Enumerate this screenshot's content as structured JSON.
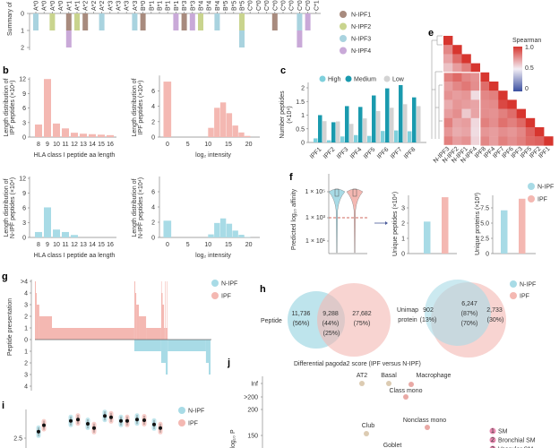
{
  "panel_labels": {
    "b": "b",
    "c": "c",
    "e": "e",
    "f": "f",
    "g": "g",
    "h": "h",
    "i": "i",
    "j": "j"
  },
  "colors": {
    "N-IPF1": "#a88b7e",
    "N-IPF2": "#c9d48e",
    "N-IPF3": "#a9d3df",
    "N-IPF4": "#c9a9d8",
    "ipf": "#f4b8b2",
    "n_ipf": "#a8dbe6",
    "high": "#7fd0dc",
    "medium": "#1a9aae",
    "low": "#d3d3d3",
    "red_text": "#e0483e",
    "threshold": "#c0392b",
    "heat_high": "#d7362f",
    "heat_mid": "#f3eef5",
    "heat_low": "#3a4fa0",
    "myeloid": "#e9a9a5",
    "epithelial": "#dccbb2",
    "sm_badge": "#e889b0"
  },
  "chart_data": [
    {
      "type": "bar",
      "panel": "a",
      "ylabel": "Summary of",
      "yticks": [
        "0",
        "1",
        "2"
      ],
      "ylim": [
        0,
        2
      ],
      "categories": [
        "A*0",
        "A*0",
        "A*0",
        "A*0",
        "A*1",
        "A*1",
        "A*2",
        "A*2",
        "A*2",
        "A*3",
        "A*3",
        "A*3",
        "A*3",
        "B*0",
        "B*1",
        "B*1",
        "B*1",
        "B*1",
        "B*3",
        "B*3",
        "B*4",
        "B*4",
        "B*4",
        "B*5",
        "B*5",
        "B*5",
        "C*0",
        "C*0",
        "C*0",
        "C*0",
        "C*0",
        "C*0",
        "C*0",
        "C*0",
        "C*1"
      ],
      "legend": [
        "N-IPF1",
        "N-IPF2",
        "N-IPF3",
        "N-IPF4"
      ],
      "stacks": [
        {
          "col": 0,
          "segments": [
            {
              "group": "N-IPF3",
              "value": 1
            }
          ]
        },
        {
          "col": 2,
          "segments": [
            {
              "group": "N-IPF2",
              "value": 1
            }
          ]
        },
        {
          "col": 4,
          "segments": [
            {
              "group": "N-IPF1",
              "value": 1
            },
            {
              "group": "N-IPF4",
              "value": 1
            }
          ]
        },
        {
          "col": 5,
          "segments": [
            {
              "group": "N-IPF2",
              "value": 1
            }
          ]
        },
        {
          "col": 6,
          "segments": [
            {
              "group": "N-IPF1",
              "value": 1
            }
          ]
        },
        {
          "col": 8,
          "segments": [
            {
              "group": "N-IPF3",
              "value": 1
            }
          ]
        },
        {
          "col": 12,
          "segments": [
            {
              "group": "N-IPF3",
              "value": 1
            }
          ]
        },
        {
          "col": 13,
          "segments": [
            {
              "group": "N-IPF1",
              "value": 1
            }
          ]
        },
        {
          "col": 17,
          "segments": [
            {
              "group": "N-IPF4",
              "value": 1
            }
          ]
        },
        {
          "col": 18,
          "segments": [
            {
              "group": "N-IPF1",
              "value": 1
            }
          ]
        },
        {
          "col": 19,
          "segments": [
            {
              "group": "N-IPF4",
              "value": 1
            }
          ]
        },
        {
          "col": 20,
          "segments": [
            {
              "group": "N-IPF2",
              "value": 1
            }
          ]
        },
        {
          "col": 22,
          "segments": [
            {
              "group": "N-IPF3",
              "value": 1
            }
          ]
        },
        {
          "col": 25,
          "segments": [
            {
              "group": "N-IPF2",
              "value": 1
            },
            {
              "group": "N-IPF3",
              "value": 1
            }
          ]
        },
        {
          "col": 29,
          "segments": [
            {
              "group": "N-IPF1",
              "value": 1
            }
          ]
        },
        {
          "col": 32,
          "segments": [
            {
              "group": "N-IPF3",
              "value": 1
            },
            {
              "group": "N-IPF4",
              "value": 1
            }
          ]
        },
        {
          "col": 33,
          "segments": [
            {
              "group": "N-IPF4",
              "value": 1
            }
          ]
        }
      ]
    },
    {
      "type": "bar",
      "panel": "b",
      "ylabel": [
        "Length distribution of",
        "IPF peptides (×10⁴)"
      ],
      "xlabel": "HLA class I peptide aa length",
      "categories": [
        "8",
        "9",
        "10",
        "11",
        "12",
        "13",
        "14",
        "15",
        "16"
      ],
      "values": [
        2.6,
        12,
        2.8,
        1.8,
        0.9,
        0.7,
        0.6,
        0.5,
        0.4
      ],
      "yticks": [
        "0",
        "3",
        "6",
        "9",
        "12"
      ],
      "ylim": [
        0,
        12
      ]
    },
    {
      "type": "bar",
      "panel": "b",
      "ylabel": [
        "Length distribution of",
        "IPF peptides (×10⁴)"
      ],
      "xlabel": "log₂ intensity",
      "bins": [
        [
          -1,
          1,
          7.2
        ],
        [
          10,
          11.5,
          1.2
        ],
        [
          11.5,
          13,
          3.8
        ],
        [
          13,
          14.5,
          4.5
        ],
        [
          14.5,
          16,
          3.1
        ],
        [
          16,
          17.5,
          1.5
        ],
        [
          17.5,
          19,
          0.6
        ],
        [
          19,
          20.5,
          0.15
        ]
      ],
      "xticks": [
        "0",
        "5",
        "10",
        "15",
        "20"
      ],
      "yticks": [
        "0",
        "2",
        "4",
        "6"
      ],
      "ylim": [
        0,
        8
      ]
    },
    {
      "type": "bar",
      "panel": "b",
      "ylabel": [
        "Length distribution of",
        "N-IPF peptides (×10⁴)"
      ],
      "xlabel": "HLA class I peptide aa length",
      "categories": [
        "8",
        "9",
        "10",
        "11",
        "12",
        "13",
        "14",
        "15",
        "16"
      ],
      "values": [
        1.1,
        6.1,
        1.6,
        1.1,
        0.5,
        0,
        0,
        0,
        0
      ],
      "yticks": [
        "0",
        "3",
        "6",
        "9",
        "12"
      ],
      "ylim": [
        0,
        12
      ]
    },
    {
      "type": "bar",
      "panel": "b",
      "ylabel": [
        "Length distribution of",
        "N-IPF peptides (×10⁴)"
      ],
      "xlabel": "log₂ intensity",
      "bins": [
        [
          -1,
          1,
          2.2
        ],
        [
          10,
          11.5,
          0.4
        ],
        [
          11.5,
          13,
          1.9
        ],
        [
          13,
          14.5,
          2.5
        ],
        [
          14.5,
          16,
          1.8
        ],
        [
          16,
          17.5,
          0.9
        ],
        [
          17.5,
          19,
          0.35
        ],
        [
          19,
          20.5,
          0.05
        ]
      ],
      "xticks": [
        "0",
        "5",
        "10",
        "15",
        "20"
      ],
      "yticks": [
        "0",
        "2",
        "4",
        "6"
      ],
      "ylim": [
        0,
        8
      ]
    },
    {
      "type": "bar",
      "panel": "c",
      "ylabel": [
        "Number peptides",
        "(×10⁴)"
      ],
      "categories": [
        "IPF1",
        "IPF2",
        "IPF3",
        "IPF4",
        "IPF5",
        "IPF6",
        "IPF7",
        "IPF8"
      ],
      "series": [
        {
          "name": "High",
          "values": [
            0.15,
            0.08,
            0.22,
            0.27,
            0.24,
            0.42,
            0.44,
            0.41
          ]
        },
        {
          "name": "Medium",
          "values": [
            1.0,
            0.74,
            1.33,
            1.3,
            1.72,
            1.98,
            2.1,
            1.65
          ]
        },
        {
          "name": "Low",
          "values": [
            0.78,
            0.77,
            0.68,
            0.88,
            1.15,
            1.27,
            1.4,
            1.33
          ]
        }
      ],
      "yticks": [
        "0",
        "0.5",
        "1",
        "1.5",
        "2"
      ],
      "ylim": [
        0,
        2.2
      ]
    },
    {
      "type": "heatmap",
      "panel": "e",
      "legend_title": "Spearman",
      "colorbar_ticks": [
        "1.0",
        "0.5",
        "0"
      ],
      "labels": [
        "N-IPF3",
        "N-IPF2",
        "N-IPF1",
        "N-IPF4",
        "IPF8",
        "IPF4",
        "IPF7",
        "IPF6",
        "IPF3",
        "IPF5",
        "IPF2",
        "IPF1"
      ],
      "matrix": [
        [
          1
        ],
        [
          0.78,
          1
        ],
        [
          0.7,
          0.85,
          1
        ],
        [
          0.62,
          0.72,
          0.8,
          1
        ],
        [
          0.8,
          0.86,
          0.78,
          0.75,
          1
        ],
        [
          0.72,
          0.78,
          0.82,
          0.76,
          0.85,
          1
        ],
        [
          0.75,
          0.72,
          0.74,
          0.55,
          0.78,
          0.8,
          1
        ],
        [
          0.68,
          0.74,
          0.72,
          0.7,
          0.76,
          0.77,
          0.95,
          1
        ],
        [
          0.72,
          0.76,
          0.6,
          0.7,
          0.76,
          0.75,
          0.8,
          0.85,
          1
        ],
        [
          0.8,
          0.7,
          0.72,
          0.56,
          0.8,
          0.76,
          0.84,
          0.8,
          0.86,
          1
        ],
        [
          0.74,
          0.68,
          0.7,
          0.55,
          0.74,
          0.72,
          0.76,
          0.74,
          0.78,
          0.88,
          1
        ],
        [
          0.8,
          0.72,
          0.75,
          0.57,
          0.78,
          0.72,
          0.8,
          0.76,
          0.8,
          0.86,
          0.88,
          1
        ]
      ]
    },
    {
      "type": "violin",
      "panel": "f",
      "ylabel": "Predicted log₁₀ affinity",
      "yscale": "log",
      "yticks": [
        "1 × 10⁵",
        "1 × 10³",
        "1 × 10¹"
      ],
      "threshold_tick": "1 × 10³",
      "groups": [
        "N-IPF",
        "IPF"
      ]
    },
    {
      "type": "bar",
      "panel": "f",
      "ylabel": "Unique peptides (×10⁴)",
      "categories": [
        "N-IPF",
        "IPF"
      ],
      "values": [
        2.1,
        3.7
      ],
      "yticks": [
        "0",
        "1",
        "2",
        "3"
      ],
      "ylim": [
        0,
        3.8
      ]
    },
    {
      "type": "bar",
      "panel": "f",
      "ylabel": "Unique proteins (×10³)",
      "categories": [
        "N-IPF",
        "IPF"
      ],
      "values": [
        7.1,
        9.0
      ],
      "yticks": [
        "0",
        "2.5",
        "5.0",
        "7.5"
      ],
      "ylim": [
        0,
        9.5
      ],
      "legend": [
        "N-IPF",
        "IPF"
      ]
    },
    {
      "type": "area",
      "panel": "g",
      "ylabel": "Peptide presentation",
      "yticks_up": [
        ">4",
        "4",
        "3",
        "2",
        "1",
        "0"
      ],
      "yticks_down": [
        "1",
        "2",
        "3",
        "4"
      ],
      "legend": [
        "N-IPF",
        "IPF"
      ],
      "series": [
        {
          "name": "IPF",
          "direction": "up",
          "segments": [
            [
              0,
              0.5,
              5
            ],
            [
              0.5,
              1,
              4
            ],
            [
              1,
              2.5,
              3
            ],
            [
              2.5,
              9.7,
              2
            ],
            [
              9.7,
              56.6,
              1
            ],
            [
              56.6,
              57.1,
              5
            ],
            [
              57.1,
              57.7,
              4
            ],
            [
              57.7,
              59.2,
              3
            ],
            [
              59.2,
              63.3,
              2
            ],
            [
              63.3,
              71.9,
              1
            ],
            [
              71.9,
              72.2,
              5
            ],
            [
              72.2,
              72.7,
              4
            ],
            [
              72.7,
              73.5,
              3
            ],
            [
              73.5,
              74,
              1
            ],
            [
              74,
              74.3,
              5
            ],
            [
              74.3,
              75,
              1
            ],
            [
              75,
              75.3,
              5
            ],
            [
              75.3,
              75.6,
              1
            ]
          ]
        },
        {
          "name": "N-IPF",
          "direction": "down",
          "segments": [
            [
              56.6,
              71.9,
              1
            ],
            [
              71.9,
              74.5,
              2
            ],
            [
              74.5,
              75.6,
              3
            ],
            [
              75.6,
              97.4,
              1
            ],
            [
              97.4,
              99,
              2
            ],
            [
              99,
              100,
              3
            ]
          ]
        }
      ]
    },
    {
      "type": "venn",
      "panel": "h",
      "label": "Peptide",
      "left": {
        "count": "11,736",
        "pct": "(56%)"
      },
      "overlap": {
        "count": "9,288",
        "pct": "(44%)",
        "pct_ipf": "(25%)"
      },
      "right": {
        "count": "27,682",
        "pct_ipf": "(75%)"
      }
    },
    {
      "type": "venn",
      "panel": "h",
      "label": [
        "Unimap",
        "protein"
      ],
      "left": {
        "count": "902",
        "pct": "(13%)"
      },
      "overlap": {
        "count": "6,247",
        "pct": "(87%)",
        "pct_ipf": "(70%)"
      },
      "right": {
        "count": "2,733",
        "pct_ipf": "(30%)"
      },
      "legend": [
        "N-IPF",
        "IPF"
      ]
    },
    {
      "type": "scatter",
      "panel": "i",
      "yticks": [
        "2.5"
      ],
      "legend": [
        "N-IPF",
        "IPF"
      ],
      "pairs": [
        [
          2.59,
          2.68
        ],
        [
          2.74,
          2.76
        ],
        [
          2.7,
          2.64
        ],
        [
          2.81,
          2.79
        ],
        [
          2.74,
          2.74
        ],
        [
          2.76,
          2.75
        ],
        [
          2.69,
          2.64
        ]
      ]
    },
    {
      "type": "scatter",
      "panel": "j",
      "title": "Differential pagoda2 score (IPF versus N-IPF)",
      "ylabel": "−log₁₀ P",
      "yticks": [
        "Inf",
        ">200",
        "200",
        "150"
      ],
      "points": [
        {
          "label": "AT2",
          "y": "Inf",
          "group": "epithelial"
        },
        {
          "label": "Basal",
          "y": "Inf",
          "group": "epithelial"
        },
        {
          "label": "Macrophage",
          "y": "Inf",
          "group": "myeloid"
        },
        {
          "label": "Class mono",
          "y": ">200",
          "group": "myeloid"
        },
        {
          "label": "Club",
          "y": 153,
          "group": "epithelial"
        },
        {
          "label": "Nonclass mono",
          "y": 165,
          "group": "myeloid"
        },
        {
          "label": "Goblet",
          "y": null,
          "group": "epithelial"
        }
      ],
      "legend": [
        {
          "num": "1",
          "label": "SM"
        },
        {
          "num": "2",
          "label": "Bronchial SM"
        },
        {
          "num": "3",
          "label": "Vascular SM"
        }
      ]
    }
  ]
}
